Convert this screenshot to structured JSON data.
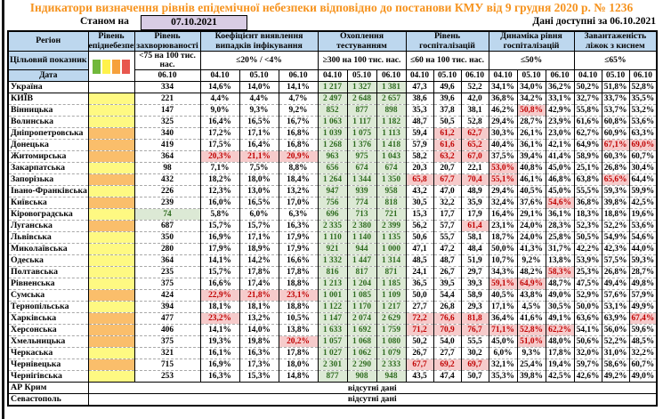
{
  "title": "Індикатори визначення рівнів епідемічної небезпеки відповідно до постанови КМУ від 9 грудня 2020 р. № 1236",
  "as_of": {
    "label": "Станом на",
    "date": "07.10.2021"
  },
  "available": {
    "label": "Дані доступні за",
    "date": "06.10.2021"
  },
  "columns": {
    "region": "Регіон",
    "epi_level": "Рівень епіднебезпеки",
    "incidence": "Рівень захворюваності",
    "detection": "Коефіцієнт виявлення випадків інфікування",
    "testing": "Охоплення тестуванням",
    "hosp": "Рівень госпіталізацій",
    "hosp_dyn": "Динаміка рівня госпіталізацій",
    "beds": "Завантаженість ліжок з киснем"
  },
  "target_label": "Цільовий показник",
  "date_label": "Дата",
  "targets": {
    "incidence": "<75 на 100 тис. нас.",
    "detection": "≤20% / <4%",
    "testing": "≥300 на 100 тис. нас.",
    "hosp": "≤60 на 100 тис. нас.",
    "hosp_dyn": "≤50%",
    "beds": "≤65%"
  },
  "dates": {
    "incidence": "06.10",
    "d1": "04.10",
    "d2": "05.10",
    "d3": "06.10"
  },
  "no_data_text": "відсутні дані",
  "legend_swatches": [
    "#71B83B",
    "#FFF24B",
    "#F6A13C",
    "#E8574E"
  ],
  "colors": {
    "header_bg": "#BDD7EE",
    "level_yellow": "#FEF982",
    "level_orange": "#FABE6B",
    "good_bg": "#DCE9D5",
    "good_text": "#2E6B1F",
    "bad_bg": "#F6CBCB",
    "bad_text": "#C00000",
    "date_box_bg": "#D8CCE4",
    "title_text": "#F6931E"
  },
  "rows": [
    {
      "name": "Україна",
      "level": "none",
      "cells": [
        "334",
        "14,6%",
        "14,0%",
        "14,1%",
        "g|1 217",
        "g|1 327",
        "g|1 381",
        "47,3",
        "49,6",
        "52,2",
        "34,1%",
        "34,0%",
        "36,2%",
        "50,2%",
        "51,8%",
        "52,8%"
      ]
    },
    {
      "name": "КИЇВ",
      "level": "yellow",
      "cells": [
        "221",
        "4,4%",
        "4,4%",
        "4,7%",
        "g|2 497",
        "g|2 648",
        "g|2 657",
        "38,6",
        "39,6",
        "42,0",
        "36,8%",
        "34,2%",
        "33,1%",
        "32,7%",
        "33,7%",
        "35,5%"
      ]
    },
    {
      "name": "Вінницька",
      "level": "yellow",
      "cells": [
        "147",
        "9,0%",
        "9,3%",
        "9,2%",
        "g|852",
        "g|877",
        "g|898",
        "35,3",
        "37,8",
        "38,1",
        "46,2%",
        "r|50,8%",
        "42,9%",
        "55,8%",
        "53,7%",
        "53,2%"
      ]
    },
    {
      "name": "Волинська",
      "level": "yellow",
      "cells": [
        "325",
        "16,4%",
        "16,5%",
        "16,7%",
        "g|1 063",
        "g|1 117",
        "g|1 182",
        "48,7",
        "50,5",
        "52,8",
        "29,4%",
        "28,7%",
        "23,9%",
        "61,6%",
        "60,8%",
        "53,6%"
      ]
    },
    {
      "name": "Дніпропетровська",
      "level": "orange",
      "cells": [
        "340",
        "17,2%",
        "17,1%",
        "16,8%",
        "g|1 039",
        "g|1 075",
        "g|1 113",
        "59,4",
        "r|61,2",
        "r|62,7",
        "30,3%",
        "26,1%",
        "23,0%",
        "62,7%",
        "60,9%",
        "63,3%"
      ]
    },
    {
      "name": "Донецька",
      "level": "orange",
      "cells": [
        "419",
        "17,5%",
        "16,4%",
        "16,8%",
        "g|1 268",
        "g|1 376",
        "g|1 418",
        "57,9",
        "r|61,6",
        "r|65,2",
        "40,4%",
        "36,1%",
        "42,1%",
        "64,9%",
        "r|67,1%",
        "r|69,0%"
      ]
    },
    {
      "name": "Житомирська",
      "level": "orange",
      "cells": [
        "364",
        "r|20,3%",
        "r|21,1%",
        "r|20,9%",
        "g|963",
        "g|975",
        "g|1 043",
        "58,2",
        "r|63,2",
        "r|67,0",
        "37,5%",
        "39,4%",
        "41,4%",
        "58,9%",
        "60,3%",
        "60,7%"
      ]
    },
    {
      "name": "Закарпатська",
      "level": "yellow",
      "cells": [
        "98",
        "7,1%",
        "7,5%",
        "8,8%",
        "g|656",
        "g|674",
        "g|674",
        "20,3",
        "20,7",
        "22,1",
        "r|53,0%",
        "40,8%",
        "45,0%",
        "25,1%",
        "26,8%",
        "30,4%"
      ]
    },
    {
      "name": "Запорізька",
      "level": "orange",
      "cells": [
        "432",
        "18,2%",
        "18,0%",
        "18,4%",
        "g|1 264",
        "g|1 344",
        "g|1 350",
        "r|65,8",
        "r|67,7",
        "r|70,4",
        "r|55,1%",
        "46,1%",
        "46,8%",
        "63,8%",
        "r|65,6%",
        "64,4%"
      ]
    },
    {
      "name": "Івано-Франківська",
      "level": "yellow",
      "cells": [
        "226",
        "12,3%",
        "13,0%",
        "13,2%",
        "g|947",
        "g|939",
        "g|958",
        "43,2",
        "47,0",
        "48,9",
        "29,4%",
        "40,5%",
        "45,0%",
        "55,5%",
        "59,3%",
        "59,9%"
      ]
    },
    {
      "name": "Київська",
      "level": "orange",
      "cells": [
        "239",
        "16,0%",
        "16,5%",
        "17,0%",
        "g|756",
        "g|774",
        "g|818",
        "30,5",
        "32,2",
        "35,9",
        "32,4%",
        "37,6%",
        "r|54,6%",
        "36,8%",
        "39,8%",
        "42,5%"
      ]
    },
    {
      "name": "Кіровоградська",
      "level": "yellow",
      "cells": [
        "g|74",
        "5,8%",
        "6,0%",
        "6,3%",
        "g|696",
        "g|713",
        "g|721",
        "15,3",
        "17,7",
        "17,9",
        "16,4%",
        "29,1%",
        "36,1%",
        "18,3%",
        "18,8%",
        "19,6%"
      ]
    },
    {
      "name": "Луганська",
      "level": "orange",
      "cells": [
        "687",
        "15,7%",
        "15,7%",
        "16,3%",
        "g|2 335",
        "g|2 380",
        "g|2 399",
        "56,2",
        "57,7",
        "r|61,4",
        "23,1%",
        "24,0%",
        "28,3%",
        "52,3%",
        "52,2%",
        "53,6%"
      ]
    },
    {
      "name": "Львівська",
      "level": "yellow",
      "cells": [
        "350",
        "16,9%",
        "17,1%",
        "17,9%",
        "g|1 110",
        "g|1 140",
        "g|1 135",
        "50,6",
        "55,7",
        "58,1",
        "18,7%",
        "24,0%",
        "25,8%",
        "50,5%",
        "54,9%",
        "54,6%"
      ]
    },
    {
      "name": "Миколаївська",
      "level": "yellow",
      "cells": [
        "280",
        "17,9%",
        "18,9%",
        "17,9%",
        "g|921",
        "g|944",
        "g|1 000",
        "47,1",
        "47,2",
        "48,4",
        "50,0%",
        "41,3%",
        "31,7%",
        "42,2%",
        "42,3%",
        "44,0%"
      ]
    },
    {
      "name": "Одеська",
      "level": "yellow",
      "cells": [
        "364",
        "14,1%",
        "14,2%",
        "16,6%",
        "g|1 332",
        "g|1 447",
        "g|1 314",
        "48,5",
        "48,7",
        "51,9",
        "10,7%",
        "9,2%",
        "13,8%",
        "53,9%",
        "57,5%",
        "59,3%"
      ]
    },
    {
      "name": "Полтавська",
      "level": "yellow",
      "cells": [
        "235",
        "15,7%",
        "17,8%",
        "17,8%",
        "g|816",
        "g|817",
        "g|871",
        "24,1",
        "26,7",
        "29,7",
        "34,3%",
        "48,2%",
        "r|58,3%",
        "25,3%",
        "26,8%",
        "28,7%"
      ]
    },
    {
      "name": "Рівненська",
      "level": "yellow",
      "cells": [
        "375",
        "16,6%",
        "17,4%",
        "18,8%",
        "g|1 213",
        "g|1 204",
        "g|1 185",
        "36,5",
        "39,5",
        "39,3",
        "r|59,1%",
        "r|64,9%",
        "48,7%",
        "47,5%",
        "49,4%",
        "49,8%"
      ]
    },
    {
      "name": "Сумська",
      "level": "orange",
      "cells": [
        "424",
        "r|22,9%",
        "r|21,8%",
        "r|23,1%",
        "g|1 001",
        "g|1 085",
        "g|1 109",
        "50,0",
        "54,4",
        "58,9",
        "40,5%",
        "43,8%",
        "49,0%",
        "52,9%",
        "57,6%",
        "57,9%"
      ]
    },
    {
      "name": "Тернопільська",
      "level": "yellow",
      "cells": [
        "394",
        "18,1%",
        "18,1%",
        "18,8%",
        "g|1 122",
        "g|1 170",
        "g|1 217",
        "27,7",
        "26,8",
        "29,3",
        "17,1%",
        "4,5%",
        "30,5%",
        "50,0%",
        "53,1%",
        "49,9%"
      ]
    },
    {
      "name": "Харківська",
      "level": "orange",
      "cells": [
        "477",
        "r|23,2%",
        "13,2%",
        "10,5%",
        "g|1 147",
        "g|2 074",
        "g|2 629",
        "r|72,2",
        "r|76,6",
        "r|81,8",
        "36,4%",
        "41,6%",
        "49,1%",
        "63,6%",
        "63,9%",
        "r|67,4%"
      ]
    },
    {
      "name": "Херсонська",
      "level": "orange",
      "cells": [
        "406",
        "14,1%",
        "14,0%",
        "13,8%",
        "g|1 633",
        "g|1 692",
        "g|1 759",
        "r|71,2",
        "r|70,9",
        "r|76,7",
        "r|71,1%",
        "r|52,8%",
        "r|62,2%",
        "54,1%",
        "56,0%",
        "59,6%"
      ]
    },
    {
      "name": "Хмельницька",
      "level": "orange",
      "cells": [
        "375",
        "19,3%",
        "19,8%",
        "r|20,2%",
        "g|1 057",
        "g|1 068",
        "g|1 080",
        "50,2",
        "54,0",
        "55,5",
        "45,0%",
        "r|51,0%",
        "48,0%",
        "50,6%",
        "52,2%",
        "48,5%"
      ]
    },
    {
      "name": "Черкаська",
      "level": "yellow",
      "cells": [
        "321",
        "16,1%",
        "16,3%",
        "17,8%",
        "g|1 027",
        "g|1 062",
        "g|1 079",
        "26,7",
        "27,7",
        "30,2",
        "6,0%",
        "9,3%",
        "17,8%",
        "32,0%",
        "31,0%",
        "32,2%"
      ]
    },
    {
      "name": "Чернівецька",
      "level": "orange",
      "cells": [
        "715",
        "16,9%",
        "17,3%",
        "18,0%",
        "g|2 301",
        "g|2 290",
        "g|2 333",
        "r|67,7",
        "r|69,2",
        "r|69,7",
        "32,1%",
        "25,4%",
        "19,4%",
        "59,7%",
        "58,6%",
        "60,7%"
      ]
    },
    {
      "name": "Чернігівська",
      "level": "yellow",
      "cells": [
        "253",
        "16,3%",
        "15,3%",
        "14,8%",
        "g|877",
        "g|908",
        "g|948",
        "43,5",
        "47,4",
        "50,7",
        "35,3%",
        "39,8%",
        "42,5%",
        "42,6%",
        "49,2%",
        "49,0%"
      ]
    },
    {
      "name": "АР Крим",
      "level": "none",
      "no_data": true
    },
    {
      "name": "Севастополь",
      "level": "none",
      "no_data": true
    }
  ]
}
